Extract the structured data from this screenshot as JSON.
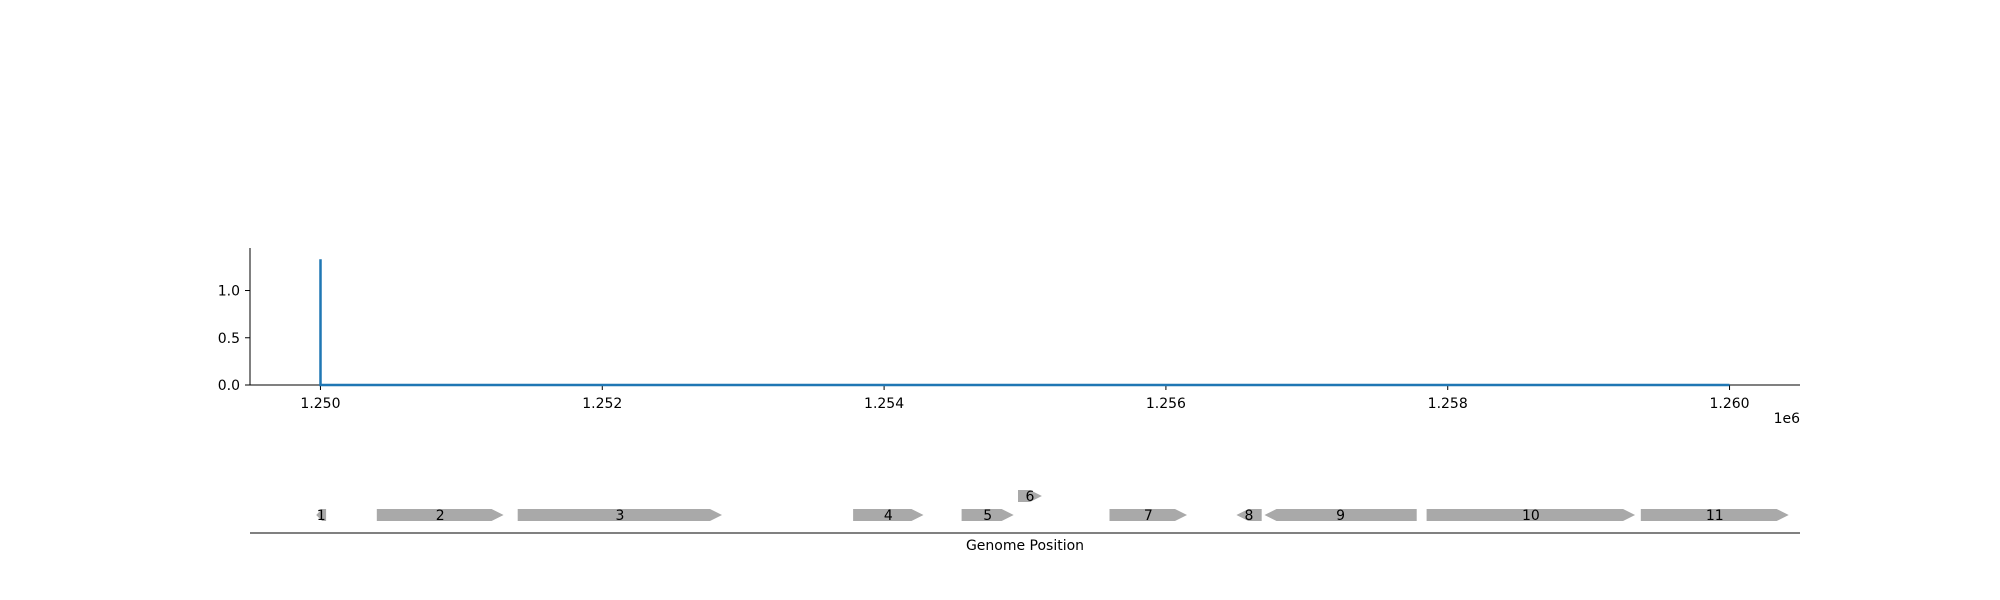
{
  "chart_data": [
    {
      "type": "line",
      "title": "",
      "xlabel": "",
      "ylabel": "",
      "x_offset_label": "1e6",
      "xlim": [
        1249500,
        1260500
      ],
      "ylim": [
        0,
        1.45
      ],
      "grid": false,
      "x_ticks": [
        1250000,
        1252000,
        1254000,
        1256000,
        1258000,
        1260000
      ],
      "x_tick_labels": [
        "1.250",
        "1.252",
        "1.254",
        "1.256",
        "1.258",
        "1.260"
      ],
      "y_ticks": [
        0.0,
        0.5,
        1.0
      ],
      "y_tick_labels": [
        "0.0",
        "0.5",
        "1.0"
      ],
      "series": [
        {
          "color": "#1f77b4",
          "x": [
            1250000,
            1250000,
            1250010,
            1260000
          ],
          "y": [
            1.33,
            0.0,
            0.0,
            0.0
          ]
        }
      ]
    },
    {
      "type": "gene_track",
      "xlabel": "Genome Position",
      "xlim": [
        1249500,
        1260500
      ],
      "feature_color": "#a9a9a9",
      "features": [
        {
          "label": "1",
          "start": 1249970,
          "end": 1250040,
          "strand": "-",
          "level": 0
        },
        {
          "label": "2",
          "start": 1250400,
          "end": 1251300,
          "strand": "+",
          "level": 0
        },
        {
          "label": "3",
          "start": 1251400,
          "end": 1252850,
          "strand": "+",
          "level": 0
        },
        {
          "label": "4",
          "start": 1253780,
          "end": 1254280,
          "strand": "+",
          "level": 0
        },
        {
          "label": "5",
          "start": 1254550,
          "end": 1254920,
          "strand": "+",
          "level": 0
        },
        {
          "label": "6",
          "start": 1254950,
          "end": 1255120,
          "strand": "+",
          "level": 1
        },
        {
          "label": "7",
          "start": 1255600,
          "end": 1256150,
          "strand": "+",
          "level": 0
        },
        {
          "label": "8",
          "start": 1256500,
          "end": 1256680,
          "strand": "-",
          "level": 0
        },
        {
          "label": "9",
          "start": 1256700,
          "end": 1257780,
          "strand": "-",
          "level": 0
        },
        {
          "label": "10",
          "start": 1257850,
          "end": 1259330,
          "strand": "+",
          "level": 0
        },
        {
          "label": "11",
          "start": 1259370,
          "end": 1260420,
          "strand": "+",
          "level": 0
        }
      ]
    }
  ]
}
